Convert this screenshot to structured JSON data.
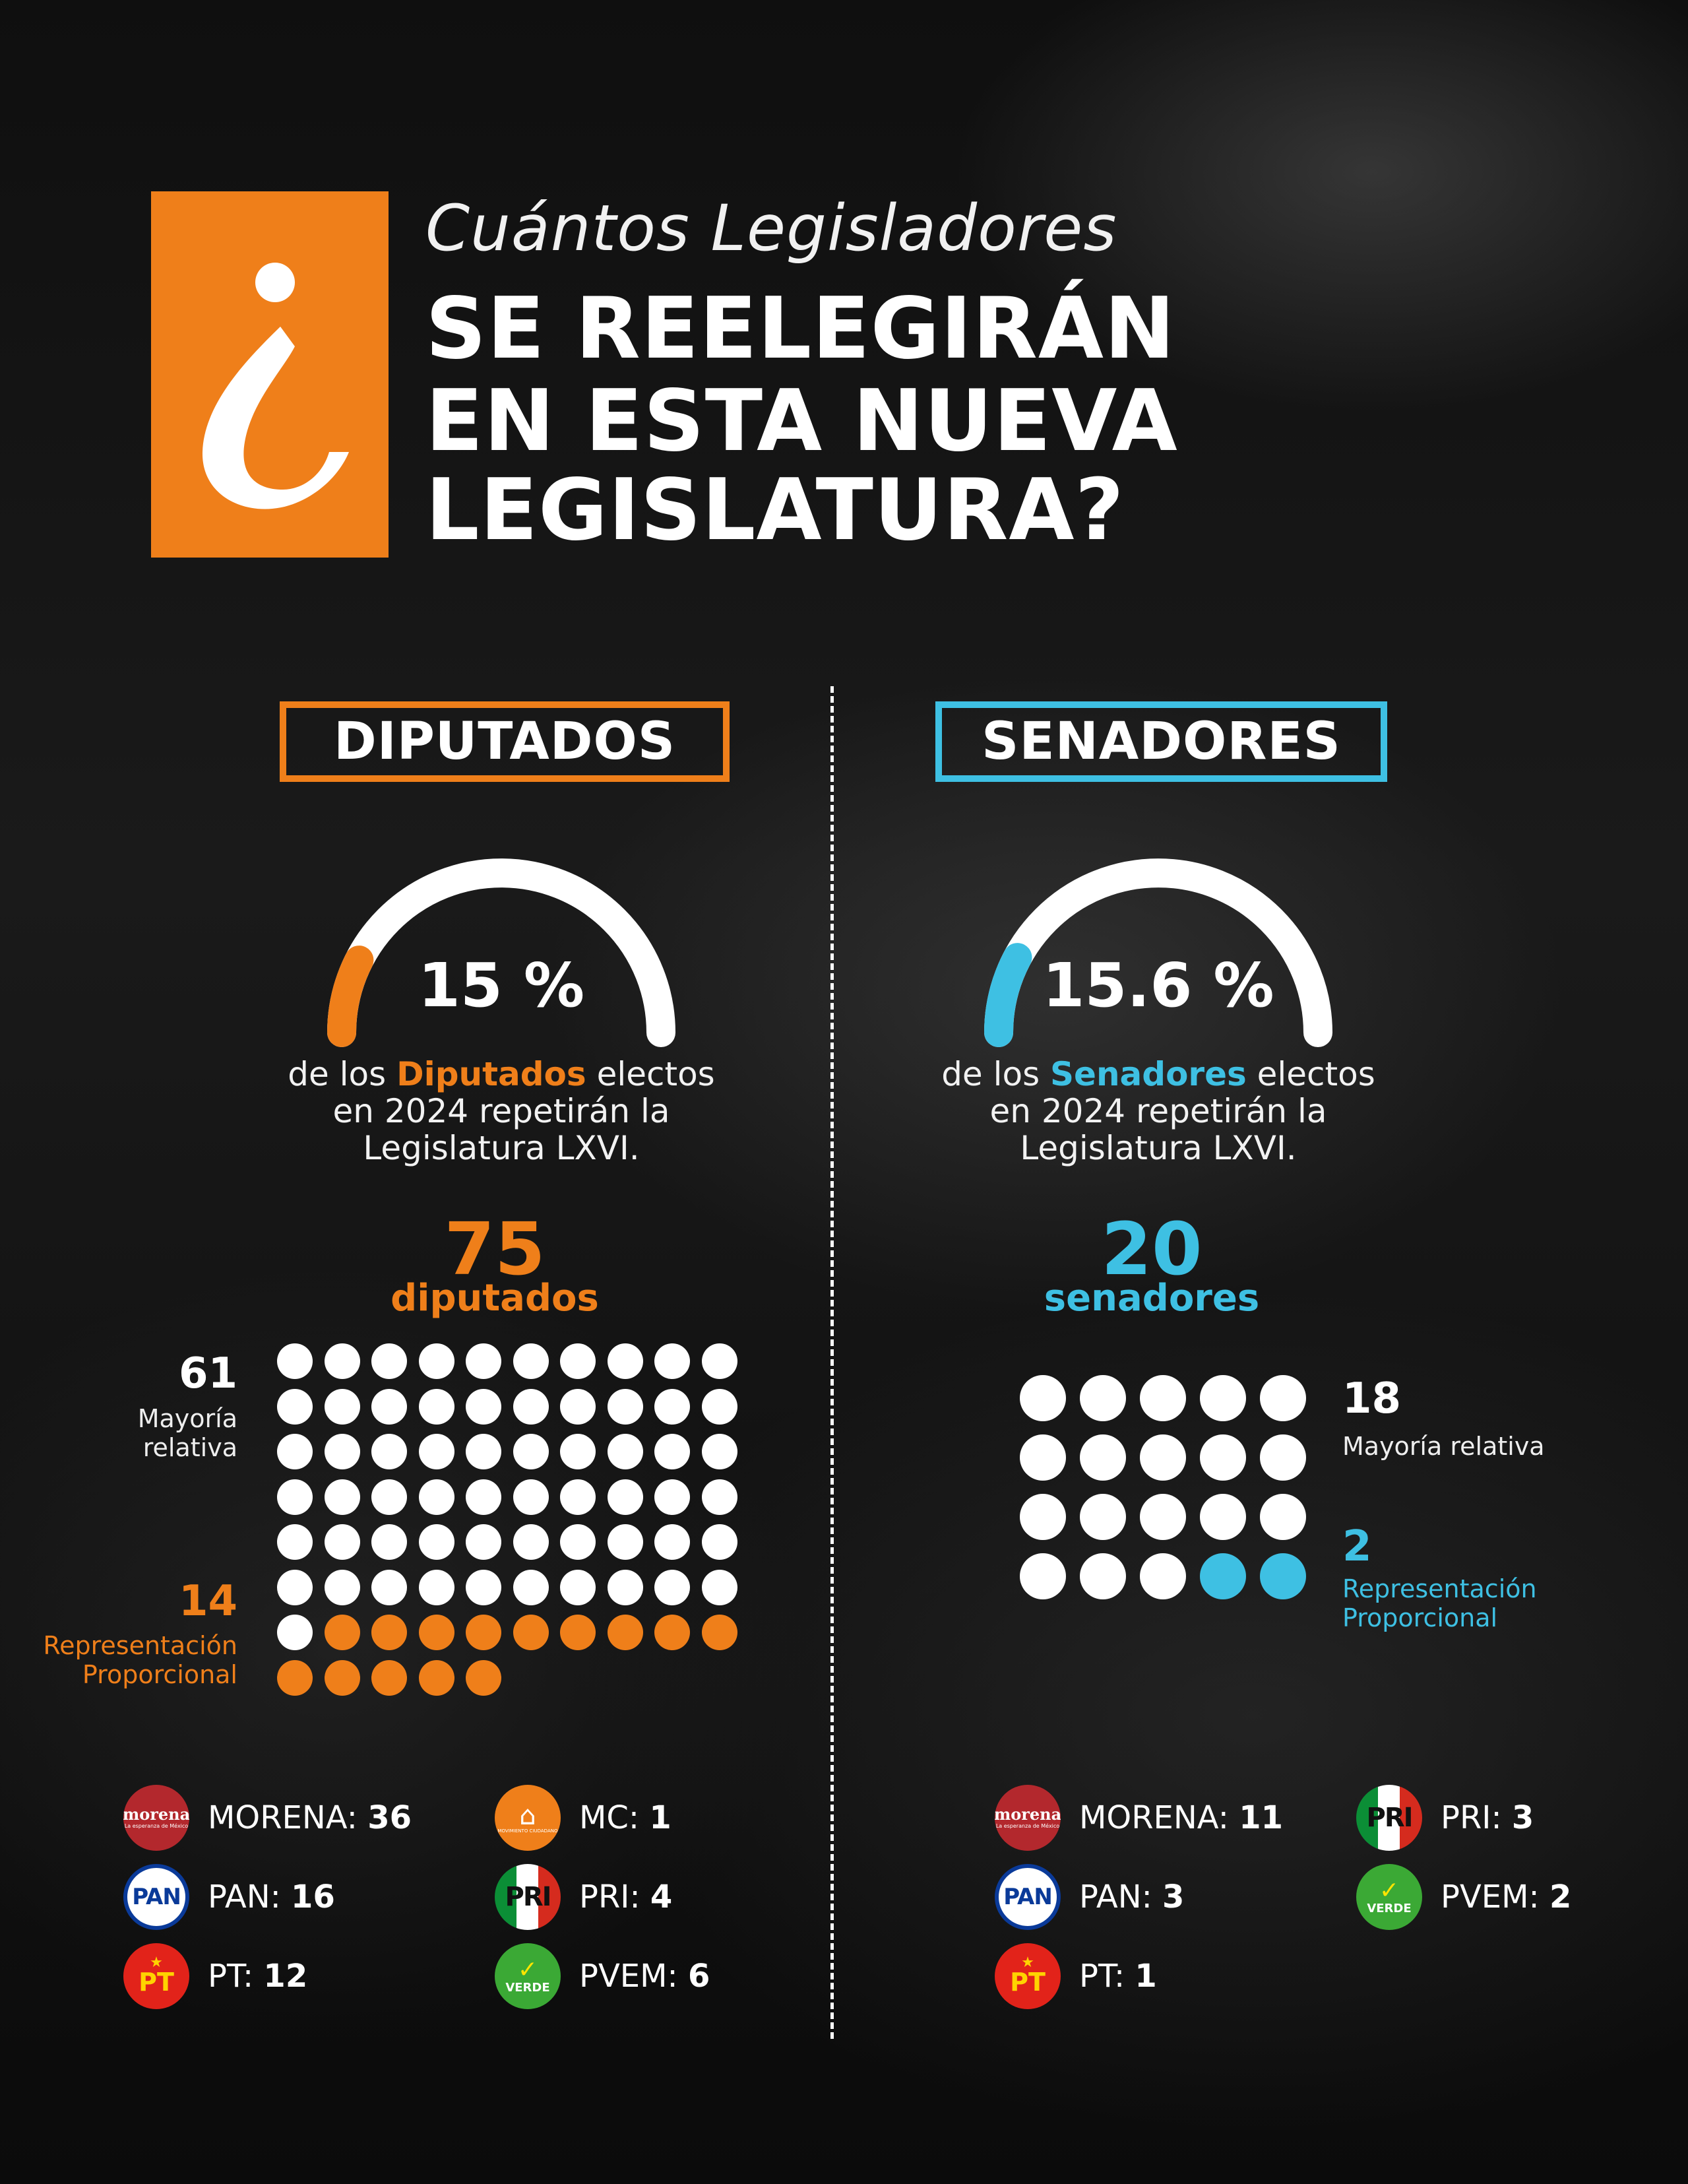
{
  "header": {
    "logo_glyph": "¿",
    "subtitle": "Cuántos Legisladores",
    "title_lines": [
      "SE REELEGIRÁN",
      "EN ESTA NUEVA",
      "LEGISLATURA?"
    ]
  },
  "colors": {
    "diputados_accent": "#EF7F1A",
    "senadores_accent": "#3EC0E3",
    "dot_default": "#FFFFFF"
  },
  "diputados": {
    "badge": "DIPUTADOS",
    "percent_text": "15 %",
    "percent_value": 15,
    "description": {
      "pre": "de los ",
      "highlight": "Diputados",
      "post": " electos",
      "line2": "en 2024 repetirán la",
      "line3": "Legislatura LXVI."
    },
    "total": "75",
    "total_unit": "diputados",
    "mayoria_relativa": {
      "count": "61",
      "label_lines": [
        "Mayoría",
        "relativa"
      ]
    },
    "representacion_proporcional": {
      "count": "14",
      "label_lines": [
        "Representación",
        "Proporcional"
      ]
    },
    "parties": [
      {
        "name": "MORENA",
        "count": "36",
        "logo": "morena-logo",
        "logo_text": "morena",
        "logo_sub": "La esperanza de México"
      },
      {
        "name": "PAN",
        "count": "16",
        "logo": "pan-logo",
        "logo_text": "PAN"
      },
      {
        "name": "PT",
        "count": "12",
        "logo": "pt-logo",
        "logo_text": "PT"
      },
      {
        "name": "MC",
        "count": "1",
        "logo": "mc-logo",
        "logo_text": "MOVIMIENTO CIUDADANO"
      },
      {
        "name": "PRI",
        "count": "4",
        "logo": "pri-logo",
        "logo_text": "PRI"
      },
      {
        "name": "PVEM",
        "count": "6",
        "logo": "pvem-logo",
        "logo_text": "VERDE"
      }
    ]
  },
  "senadores": {
    "badge": "SENADORES",
    "percent_text": "15.6 %",
    "percent_value": 15.6,
    "description": {
      "pre": "de los ",
      "highlight": "Senadores",
      "post": " electos",
      "line2": "en 2024 repetirán la",
      "line3": "Legislatura LXVI."
    },
    "total": "20",
    "total_unit": "senadores",
    "mayoria_relativa": {
      "count": "18",
      "label_lines": [
        "Mayoría relativa"
      ]
    },
    "representacion_proporcional": {
      "count": "2",
      "label_lines": [
        "Representación",
        "Proporcional"
      ]
    },
    "parties": [
      {
        "name": "MORENA",
        "count": "11",
        "logo": "morena-logo",
        "logo_text": "morena",
        "logo_sub": "La esperanza de México"
      },
      {
        "name": "PAN",
        "count": "3",
        "logo": "pan-logo",
        "logo_text": "PAN"
      },
      {
        "name": "PT",
        "count": "1",
        "logo": "pt-logo",
        "logo_text": "PT"
      },
      {
        "name": "PRI",
        "count": "3",
        "logo": "pri-logo",
        "logo_text": "PRI"
      },
      {
        "name": "PVEM",
        "count": "2",
        "logo": "pvem-logo",
        "logo_text": "VERDE"
      }
    ]
  }
}
